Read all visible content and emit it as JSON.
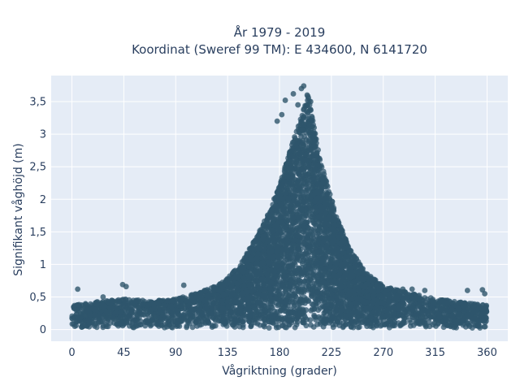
{
  "chart_data": {
    "type": "scatter",
    "title_lines": [
      "År 1979 - 2019",
      "Koordinat (Sweref 99 TM): E 434600, N 6141720"
    ],
    "xlabel": "Vågriktning (grader)",
    "ylabel": "Signifikant våghöjd (m)",
    "xlim": [
      -18,
      378
    ],
    "ylim": [
      -0.18,
      3.9
    ],
    "x_ticks": [
      0,
      45,
      90,
      135,
      180,
      225,
      270,
      315,
      360
    ],
    "x_tick_labels": [
      "0",
      "45",
      "90",
      "135",
      "180",
      "225",
      "270",
      "315",
      "360"
    ],
    "y_ticks": [
      0,
      0.5,
      1,
      1.5,
      2,
      2.5,
      3,
      3.5
    ],
    "y_tick_labels": [
      "0",
      "0,5",
      "1",
      "1,5",
      "2",
      "2,5",
      "3",
      "3,5"
    ],
    "grid": true,
    "marker_color": "#2f566c",
    "plot_background": "#e5ecf6",
    "envelope": {
      "x": [
        0,
        20,
        45,
        70,
        90,
        110,
        130,
        145,
        160,
        170,
        180,
        190,
        200,
        205,
        210,
        215,
        220,
        230,
        240,
        255,
        270,
        290,
        315,
        340,
        360
      ],
      "y_max": [
        0.35,
        0.4,
        0.45,
        0.42,
        0.45,
        0.55,
        0.7,
        0.95,
        1.4,
        1.75,
        2.2,
        2.8,
        3.3,
        3.6,
        3.1,
        2.6,
        2.3,
        1.7,
        1.25,
        0.85,
        0.65,
        0.55,
        0.45,
        0.4,
        0.35
      ]
    },
    "outliers": [
      {
        "x": 5,
        "y": 0.62
      },
      {
        "x": 44,
        "y": 0.69
      },
      {
        "x": 47,
        "y": 0.66
      },
      {
        "x": 27,
        "y": 0.5
      },
      {
        "x": 97,
        "y": 0.68
      },
      {
        "x": 185,
        "y": 3.52
      },
      {
        "x": 192,
        "y": 3.62
      },
      {
        "x": 196,
        "y": 3.45
      },
      {
        "x": 199,
        "y": 3.7
      },
      {
        "x": 201,
        "y": 3.74
      },
      {
        "x": 204,
        "y": 3.6
      },
      {
        "x": 207,
        "y": 3.5
      },
      {
        "x": 210,
        "y": 3.1
      },
      {
        "x": 178,
        "y": 3.2
      },
      {
        "x": 182,
        "y": 3.3
      },
      {
        "x": 287,
        "y": 0.62
      },
      {
        "x": 295,
        "y": 0.62
      },
      {
        "x": 306,
        "y": 0.6
      },
      {
        "x": 343,
        "y": 0.6
      },
      {
        "x": 356,
        "y": 0.61
      },
      {
        "x": 358,
        "y": 0.55
      }
    ]
  }
}
